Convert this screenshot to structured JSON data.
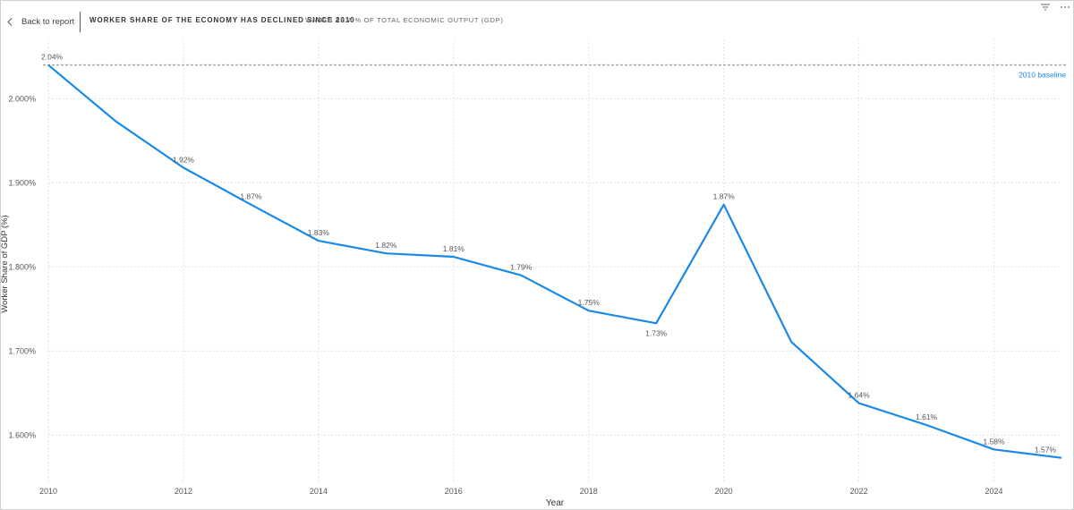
{
  "header": {
    "back_label": "Back to report",
    "back_icon": "chevron-left-icon",
    "title": "WORKER SHARE OF THE ECONOMY HAS DECLINED SINCE 2010",
    "subtitle": "WAGES AS A % OF TOTAL ECONOMIC OUTPUT (GDP)",
    "filter_icon": "filter-icon",
    "more_icon": "more-options-icon"
  },
  "colors": {
    "line": "#1a8ae6",
    "baseline": "#a8a8a8",
    "baseline_label": "#1a8ae6",
    "grid": "#e3e3e3"
  },
  "chart_data": {
    "type": "line",
    "xlabel": "Year",
    "ylabel": "Worker Share of GDP (%)",
    "x": [
      2010,
      2011,
      2012,
      2013,
      2014,
      2015,
      2016,
      2017,
      2018,
      2019,
      2020,
      2021,
      2022,
      2023,
      2024,
      2025
    ],
    "series": [
      {
        "values": [
          2.04,
          1.973,
          1.918,
          1.874,
          1.831,
          1.816,
          1.812,
          1.79,
          1.748,
          1.733,
          1.874,
          1.711,
          1.638,
          1.612,
          1.583,
          1.573
        ]
      }
    ],
    "data_labels": [
      "2.04%",
      "",
      "1.92%",
      "1.87%",
      "1.83%",
      "1.82%",
      "1.81%",
      "1.79%",
      "1.75%",
      "1.73%",
      "1.87%",
      "",
      "1.64%",
      "1.61%",
      "1.58%",
      "1.57%"
    ],
    "x_ticks": [
      2010,
      2012,
      2014,
      2016,
      2018,
      2020,
      2022,
      2024
    ],
    "x_tick_labels": [
      "2010",
      "2012",
      "2014",
      "2016",
      "2018",
      "2020",
      "2022",
      "2024"
    ],
    "y_ticks": [
      1.6,
      1.7,
      1.8,
      1.9,
      2.0
    ],
    "y_tick_labels": [
      "1.600%",
      "1.700%",
      "1.800%",
      "1.900%",
      "2.000%"
    ],
    "xlim": [
      2010,
      2025
    ],
    "ylim": [
      1.545,
      2.0705
    ],
    "grid": true,
    "baseline": {
      "value": 2.04,
      "label": "2010 baseline"
    }
  }
}
